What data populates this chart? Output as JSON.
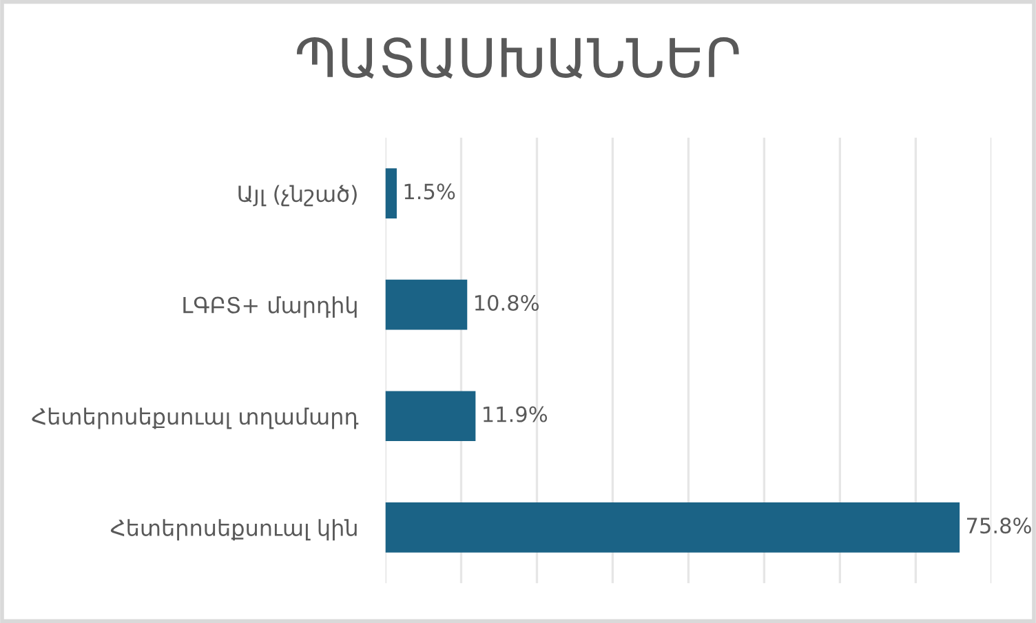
{
  "chart_data": {
    "type": "bar",
    "orientation": "horizontal",
    "title": "ՊԱՏԱՍԽԱՆՆԵՐ",
    "categories": [
      "Այլ (չնշած)",
      "ԼԳԲՏ+ մարդիկ",
      "Հետերոսեքսուալ տղամարդ",
      "Հետերոսեքսուալ կին"
    ],
    "values": [
      1.5,
      10.8,
      11.9,
      75.8
    ],
    "color": "#1b6386",
    "value_labels": [
      "1.5%",
      "10.8%",
      "11.9%",
      "75.8%"
    ],
    "xlim": [
      0,
      80
    ],
    "xticks": [
      {
        "value": 0,
        "label": null
      },
      {
        "value": 10,
        "label": null
      },
      {
        "value": 20,
        "label": null
      },
      {
        "value": 30,
        "label": null
      },
      {
        "value": 40,
        "label": null
      },
      {
        "value": 50,
        "label": null
      },
      {
        "value": 60,
        "label": null
      },
      {
        "value": 70,
        "label": null
      },
      {
        "value": 80,
        "label": null
      }
    ],
    "grid": "x",
    "tick_labels": "y"
  }
}
